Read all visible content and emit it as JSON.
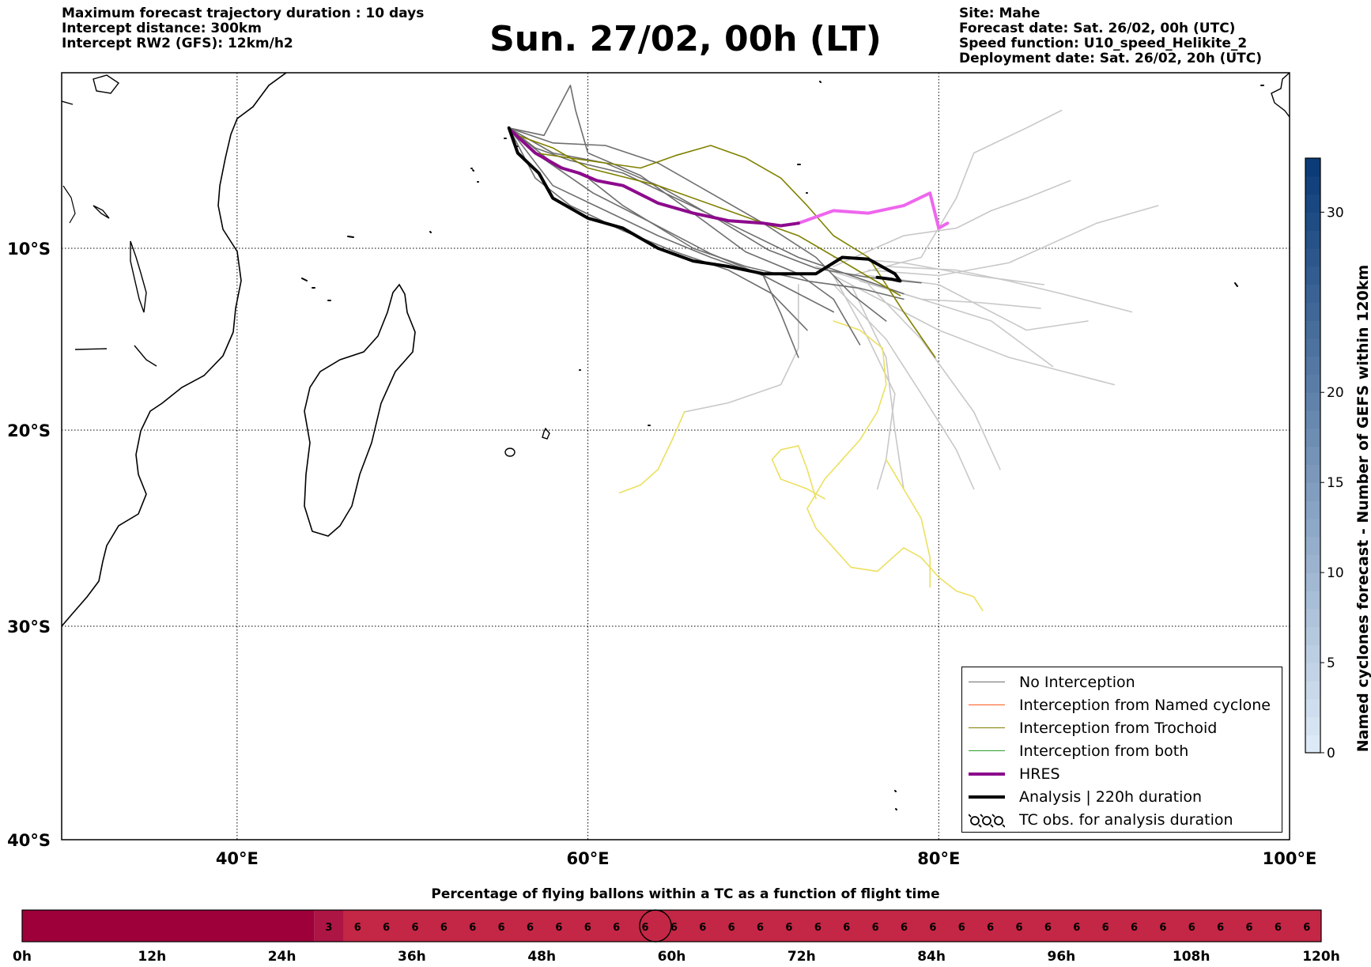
{
  "header": {
    "left": [
      "Maximum forecast trajectory duration : 10 days",
      "Intercept distance: 300km",
      "Intercept RW2 (GFS):  12km/h2"
    ],
    "title": "Sun. 27/02, 00h (LT)",
    "right": [
      "Site: Mahe",
      "Forecast date: Sat. 26/02, 00h (UTC)",
      "Speed function: U10_speed_Helikite_2",
      "Deployment date: Sat. 26/02, 20h (UTC)"
    ]
  },
  "map": {
    "lon_range": [
      30,
      100
    ],
    "lat_range": [
      -40,
      -3
    ],
    "lon_ticks": [
      {
        "value": 40,
        "label": "40°E"
      },
      {
        "value": 60,
        "label": "60°E"
      },
      {
        "value": 80,
        "label": "80°E"
      },
      {
        "value": 100,
        "label": "100°E"
      }
    ],
    "lat_ticks": [
      {
        "value": -10,
        "label": "10°S"
      },
      {
        "value": -20,
        "label": "20°S"
      },
      {
        "value": -30,
        "label": "30°S"
      },
      {
        "value": -40,
        "label": "40°S"
      }
    ],
    "colors": {
      "no_interception": "#6e6e6e",
      "no_interception_light": "#c8c8c8",
      "named_cyclone": "#ff5a1e",
      "trochoid": "#808000",
      "both": "#2ca02c",
      "hres": "#8c0a8c",
      "hres_light": "#ee66ee",
      "analysis": "#000000",
      "yellow_tracks": "#ece060"
    },
    "trajectories": {
      "analysis": [
        [
          55.5,
          -5.2
        ],
        [
          56,
          -6.2
        ],
        [
          57.2,
          -7
        ],
        [
          58,
          -8
        ],
        [
          60,
          -8.8
        ],
        [
          62,
          -9.2
        ],
        [
          64,
          -10
        ],
        [
          66,
          -10.7
        ],
        [
          68,
          -11
        ],
        [
          70,
          -11.4
        ],
        [
          73,
          -11.4
        ],
        [
          74.5,
          -10.5
        ],
        [
          76,
          -10.6
        ],
        [
          77.5,
          -11.4
        ],
        [
          77.8,
          -11.8
        ],
        [
          77.3,
          -11.7
        ],
        [
          76.5,
          -11.6
        ]
      ],
      "hres": [
        [
          55.6,
          -5.3
        ],
        [
          57,
          -6.2
        ],
        [
          58.5,
          -6.8
        ],
        [
          59.5,
          -7
        ],
        [
          60.5,
          -7.3
        ],
        [
          62,
          -7.5
        ],
        [
          64,
          -8.2
        ],
        [
          66,
          -8.6
        ],
        [
          68,
          -8.9
        ],
        [
          70,
          -9
        ],
        [
          71,
          -9.1
        ],
        [
          72,
          -9
        ]
      ],
      "hres_extension": [
        [
          72,
          -9
        ],
        [
          74,
          -8.5
        ],
        [
          76,
          -8.6
        ],
        [
          78,
          -8.3
        ],
        [
          79.5,
          -7.8
        ],
        [
          80,
          -9.2
        ],
        [
          80.5,
          -9
        ]
      ],
      "trochoid": [
        [
          [
            57,
            -6.2
          ],
          [
            60,
            -6.5
          ],
          [
            63,
            -6.8
          ],
          [
            65,
            -6.3
          ],
          [
            67,
            -5.9
          ],
          [
            69,
            -6.4
          ],
          [
            71,
            -7.2
          ],
          [
            72.5,
            -8.3
          ],
          [
            74,
            -9.5
          ],
          [
            76,
            -10.5
          ],
          [
            78,
            -13.5
          ],
          [
            79.8,
            -16
          ]
        ],
        [
          [
            56,
            -5.5
          ],
          [
            58,
            -6
          ],
          [
            60,
            -6.8
          ],
          [
            64,
            -7.5
          ],
          [
            68,
            -8.5
          ],
          [
            72,
            -9.5
          ],
          [
            75,
            -11
          ],
          [
            77.8,
            -12.6
          ]
        ]
      ],
      "no_interception_dark": [
        [
          [
            55.5,
            -5.2
          ],
          [
            58,
            -7.5
          ],
          [
            61,
            -8.5
          ],
          [
            64,
            -9.5
          ],
          [
            67,
            -10.5
          ],
          [
            70,
            -11.5
          ],
          [
            72,
            -12.5
          ],
          [
            74,
            -13.5
          ]
        ],
        [
          [
            55.5,
            -5.2
          ],
          [
            57,
            -6
          ],
          [
            59,
            -6.5
          ],
          [
            62,
            -7
          ],
          [
            65,
            -8
          ],
          [
            68,
            -9
          ],
          [
            72,
            -10.5
          ],
          [
            75,
            -11.5
          ],
          [
            78,
            -12.5
          ]
        ],
        [
          [
            55.5,
            -5.2
          ],
          [
            58,
            -5.8
          ],
          [
            61,
            -5.9
          ],
          [
            64,
            -6.6
          ],
          [
            67,
            -7.8
          ],
          [
            70,
            -9
          ],
          [
            73,
            -10.5
          ],
          [
            75,
            -12.5
          ],
          [
            77,
            -14
          ]
        ],
        [
          [
            55.5,
            -5.2
          ],
          [
            57,
            -7.2
          ],
          [
            59,
            -8.3
          ],
          [
            62,
            -9.3
          ],
          [
            65,
            -10.2
          ],
          [
            68,
            -11.2
          ],
          [
            70.5,
            -12.5
          ],
          [
            72.5,
            -14.5
          ]
        ],
        [
          [
            55.5,
            -5.2
          ],
          [
            58,
            -6.6
          ],
          [
            60,
            -7.2
          ],
          [
            62,
            -8.3
          ],
          [
            66,
            -10
          ],
          [
            69,
            -11
          ],
          [
            72.5,
            -11.8
          ],
          [
            75.5,
            -12.2
          ],
          [
            78,
            -12.8
          ]
        ],
        [
          [
            55.5,
            -5.2
          ],
          [
            57.5,
            -5.5
          ],
          [
            59,
            -3.5
          ],
          [
            59.3,
            -4.5
          ],
          [
            60,
            -6.2
          ],
          [
            63,
            -7.1
          ],
          [
            66,
            -8.6
          ],
          [
            69,
            -10.2
          ],
          [
            72,
            -11.4
          ],
          [
            74,
            -12.8
          ],
          [
            75.5,
            -15.3
          ]
        ],
        [
          [
            55.5,
            -5.2
          ],
          [
            57.4,
            -6.4
          ],
          [
            60.3,
            -7.8
          ],
          [
            63.4,
            -8.9
          ],
          [
            67,
            -10.3
          ],
          [
            70,
            -11.5
          ],
          [
            71,
            -13.6
          ],
          [
            72,
            -16
          ]
        ],
        [
          [
            55.5,
            -5.2
          ],
          [
            58,
            -6.2
          ],
          [
            61,
            -6.6
          ],
          [
            64,
            -7.5
          ],
          [
            67.3,
            -8.8
          ],
          [
            70.3,
            -10.1
          ],
          [
            73,
            -11.1
          ],
          [
            76,
            -11.6
          ],
          [
            79,
            -11.9
          ]
        ]
      ],
      "no_interception_light": [
        [
          [
            74,
            -10.5
          ],
          [
            78,
            -10.8
          ],
          [
            82,
            -11.5
          ],
          [
            86,
            -12
          ]
        ],
        [
          [
            73,
            -11
          ],
          [
            78,
            -12.5
          ],
          [
            83,
            -14
          ],
          [
            86.5,
            -16.5
          ]
        ],
        [
          [
            74,
            -11.5
          ],
          [
            77,
            -13
          ],
          [
            80,
            -14.5
          ],
          [
            84,
            -16
          ],
          [
            88,
            -17
          ],
          [
            90,
            -17.5
          ]
        ],
        [
          [
            76,
            -11.2
          ],
          [
            80,
            -11.5
          ],
          [
            84,
            -10.8
          ],
          [
            89,
            -9
          ],
          [
            92.5,
            -8.3
          ]
        ],
        [
          [
            75,
            -11.5
          ],
          [
            79,
            -10.5
          ],
          [
            81,
            -8
          ],
          [
            82,
            -6.2
          ],
          [
            85,
            -5.2
          ],
          [
            87,
            -4.5
          ]
        ],
        [
          [
            74,
            -12
          ],
          [
            77,
            -15
          ],
          [
            79,
            -18
          ],
          [
            81,
            -21
          ],
          [
            82,
            -23
          ]
        ],
        [
          [
            72,
            -12
          ],
          [
            72,
            -15.5
          ],
          [
            71,
            -17.5
          ],
          [
            68,
            -18.5
          ],
          [
            65.5,
            -19
          ]
        ],
        [
          [
            74,
            -11.5
          ],
          [
            76,
            -15
          ],
          [
            77.5,
            -18
          ],
          [
            77,
            -21.5
          ],
          [
            76.5,
            -23
          ]
        ],
        [
          [
            76,
            -12
          ],
          [
            79,
            -15
          ],
          [
            82,
            -19
          ],
          [
            83.5,
            -22
          ]
        ],
        [
          [
            76,
            -11.5
          ],
          [
            80,
            -12
          ],
          [
            83,
            -13.5
          ],
          [
            85,
            -14.5
          ],
          [
            88.5,
            -14
          ]
        ],
        [
          [
            77,
            -11
          ],
          [
            81,
            -11.2
          ],
          [
            84,
            -11.8
          ],
          [
            87,
            -12.5
          ],
          [
            91,
            -13.5
          ]
        ],
        [
          [
            74,
            -11
          ],
          [
            78,
            -9.5
          ],
          [
            81,
            -9.2
          ],
          [
            83,
            -8.5
          ],
          [
            85,
            -8
          ],
          [
            87.5,
            -7.3
          ]
        ],
        [
          [
            75,
            -12
          ],
          [
            77,
            -16
          ],
          [
            77.5,
            -20
          ],
          [
            78,
            -23
          ]
        ],
        [
          [
            75.5,
            -11.8
          ],
          [
            79,
            -12.8
          ],
          [
            82.5,
            -13
          ],
          [
            85.8,
            -13.3
          ]
        ]
      ],
      "yellow": [
        [
          [
            74,
            -14
          ],
          [
            75.5,
            -14.5
          ],
          [
            76.8,
            -15.5
          ],
          [
            77,
            -17.5
          ],
          [
            76.5,
            -19
          ],
          [
            75.5,
            -20.5
          ],
          [
            74.5,
            -21.5
          ],
          [
            73.5,
            -22.5
          ],
          [
            72.5,
            -24
          ],
          [
            73,
            -25
          ],
          [
            74,
            -26
          ],
          [
            75,
            -27
          ],
          [
            76.5,
            -27.2
          ],
          [
            78,
            -26
          ],
          [
            79,
            -26.5
          ],
          [
            80,
            -27.5
          ],
          [
            81,
            -28.2
          ],
          [
            82,
            -28.5
          ],
          [
            82.5,
            -29.2
          ]
        ],
        [
          [
            73.5,
            -23.5
          ],
          [
            72.5,
            -23
          ],
          [
            71,
            -22.5
          ],
          [
            70.5,
            -21.5
          ],
          [
            71,
            -21
          ],
          [
            72,
            -20.8
          ],
          [
            72.5,
            -22
          ],
          [
            73,
            -23.5
          ]
        ],
        [
          [
            77,
            -21.5
          ],
          [
            78,
            -23
          ],
          [
            79,
            -24.5
          ],
          [
            79.5,
            -26.5
          ],
          [
            79.5,
            -28
          ]
        ],
        [
          [
            65.5,
            -19
          ],
          [
            64.8,
            -20.5
          ],
          [
            64,
            -22
          ],
          [
            63,
            -22.8
          ],
          [
            61.8,
            -23.2
          ]
        ]
      ]
    }
  },
  "legend": {
    "items": [
      {
        "label": "No Interception",
        "color": "#6e6e6e",
        "width": 1.5
      },
      {
        "label": "Interception from Named cyclone",
        "color": "#ff5a1e",
        "width": 1.5
      },
      {
        "label": "Interception from Trochoid",
        "color": "#808000",
        "width": 1.5
      },
      {
        "label": "Interception from both",
        "color": "#2ca02c",
        "width": 1.5
      },
      {
        "label": "HRES",
        "color": "#8c0a8c",
        "width": 4
      },
      {
        "label": "Analysis | 220h duration",
        "color": "#000000",
        "width": 4
      },
      {
        "label": "TC obs. for analysis duration",
        "color": "#000000",
        "width": 0,
        "icon": "cyclone-icon"
      }
    ]
  },
  "colorbar": {
    "title": "Named cyclones forecast - Number of GEFS within 120km",
    "min": 0,
    "max": 33,
    "ticks": [
      0,
      5,
      10,
      15,
      20,
      30
    ],
    "color_low": "#dce9f6",
    "color_high": "#0c3c78"
  },
  "bottom_bar": {
    "title": "Percentage of flying ballons within a TC as a function of flight time",
    "hours_max": 120,
    "tick_labels": [
      "0h",
      "12h",
      "24h",
      "36h",
      "48h",
      "60h",
      "72h",
      "84h",
      "96h",
      "108h",
      "120h"
    ],
    "dark_segment_hours": [
      0,
      27
    ],
    "cells": [
      {
        "value": "3",
        "color": "#ad1545"
      },
      {
        "value": "6",
        "color": "#c42645"
      },
      {
        "value": "6",
        "color": "#c42645"
      },
      {
        "value": "6",
        "color": "#c42645"
      },
      {
        "value": "6",
        "color": "#c42645"
      },
      {
        "value": "6",
        "color": "#c42645"
      },
      {
        "value": "6",
        "color": "#c42645"
      },
      {
        "value": "6",
        "color": "#c42645"
      },
      {
        "value": "6",
        "color": "#c42645"
      },
      {
        "value": "6",
        "color": "#c42645"
      },
      {
        "value": "6",
        "color": "#c42645"
      },
      {
        "value": "6",
        "color": "#c42645"
      },
      {
        "value": "6",
        "color": "#c42645"
      },
      {
        "value": "6",
        "color": "#c42645"
      },
      {
        "value": "6",
        "color": "#c42645"
      },
      {
        "value": "6",
        "color": "#c42645"
      },
      {
        "value": "6",
        "color": "#c42645"
      },
      {
        "value": "6",
        "color": "#c42645"
      },
      {
        "value": "6",
        "color": "#c42645"
      },
      {
        "value": "6",
        "color": "#c42645"
      },
      {
        "value": "6",
        "color": "#c42645"
      },
      {
        "value": "6",
        "color": "#c42645"
      },
      {
        "value": "6",
        "color": "#c42645"
      },
      {
        "value": "6",
        "color": "#c42645"
      },
      {
        "value": "6",
        "color": "#c42645"
      },
      {
        "value": "6",
        "color": "#c42645"
      },
      {
        "value": "6",
        "color": "#c42645"
      },
      {
        "value": "6",
        "color": "#c42645"
      },
      {
        "value": "6",
        "color": "#c42645"
      },
      {
        "value": "6",
        "color": "#c42645"
      },
      {
        "value": "6",
        "color": "#c42645"
      },
      {
        "value": "6",
        "color": "#c42645"
      },
      {
        "value": "6",
        "color": "#c42645"
      },
      {
        "value": "6",
        "color": "#c42645"
      },
      {
        "value": "6",
        "color": "#c42645"
      }
    ],
    "dark_color": "#9e0039",
    "current_time_hours": 58.5
  }
}
